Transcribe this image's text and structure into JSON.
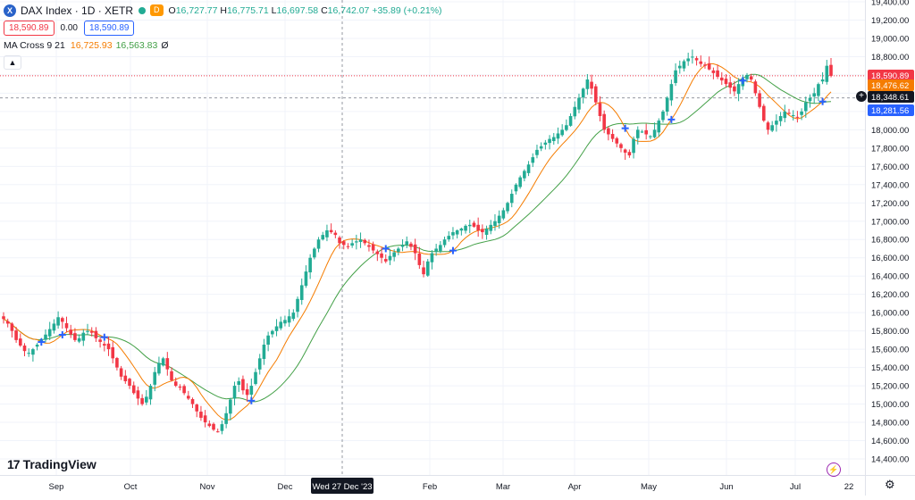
{
  "header": {
    "symbol_icon": "X",
    "symbol_name": "DAX Index · 1D · XETR",
    "status_badge": "D",
    "ohlc": {
      "o_label": "O",
      "o_value": "16,727.77",
      "h_label": "H",
      "h_value": "16,775.71",
      "l_label": "L",
      "l_value": "16,697.58",
      "c_label": "C",
      "c_value": "16,742.07",
      "change": "+35.89 (+0.21%)"
    },
    "sell_price": "18,590.89",
    "spread": "0.00",
    "buy_price": "18,590.89"
  },
  "indicator": {
    "label": "MA Cross 9 21",
    "fast_value": "16,725.93",
    "slow_value": "16,563.83",
    "cross_value": "Ø",
    "collapse_icon": "chevron-up-icon"
  },
  "footer": {
    "logo_mark": "17",
    "logo_text": "TradingView",
    "crosshair_date": "Wed 27 Dec '23"
  },
  "colors": {
    "up": "#22ab94",
    "down": "#f23645",
    "fast_ma": "#f57c00",
    "slow_ma": "#43a047",
    "cross_marker": "#2962ff",
    "current_price": "#f23645"
  },
  "chart_data": {
    "type": "candlestick",
    "y_axis_ticks": [
      14400,
      14600,
      14800,
      15000,
      15200,
      15400,
      15600,
      15800,
      16000,
      16200,
      16400,
      16600,
      16800,
      17000,
      17200,
      17400,
      17600,
      17800,
      18000,
      18200,
      18400,
      18600,
      18800,
      19000,
      19200,
      19400
    ],
    "x_axis_labels": [
      "Sep",
      "Oct",
      "Nov",
      "Dec",
      "Feb",
      "Mar",
      "Apr",
      "May",
      "Jun",
      "Jul",
      "22"
    ],
    "price_labels": [
      {
        "value": "18,590.89",
        "kind": "last"
      },
      {
        "value": "18,476.62",
        "kind": "fast_ma"
      },
      {
        "value": "18,348.61",
        "kind": "crosshair"
      },
      {
        "value": "18,281.56",
        "kind": "slow_ma"
      }
    ],
    "closes": [
      15930,
      15880,
      15800,
      15700,
      15640,
      15580,
      15560,
      15600,
      15650,
      15700,
      15760,
      15820,
      15880,
      15950,
      15900,
      15830,
      15760,
      15700,
      15720,
      15780,
      15800,
      15780,
      15720,
      15680,
      15640,
      15600,
      15500,
      15400,
      15300,
      15250,
      15200,
      15120,
      15060,
      15000,
      15080,
      15200,
      15350,
      15450,
      15500,
      15380,
      15260,
      15200,
      15180,
      15120,
      15060,
      15000,
      14920,
      14850,
      14800,
      14760,
      14720,
      14700,
      14780,
      14900,
      15050,
      15200,
      15250,
      15150,
      15100,
      15200,
      15350,
      15500,
      15650,
      15750,
      15800,
      15850,
      15900,
      15920,
      15960,
      16000,
      16150,
      16300,
      16450,
      16600,
      16700,
      16800,
      16850,
      16900,
      16880,
      16850,
      16760,
      16740,
      16720,
      16760,
      16780,
      16800,
      16760,
      16720,
      16680,
      16640,
      16600,
      16560,
      16620,
      16660,
      16700,
      16740,
      16780,
      16720,
      16650,
      16520,
      16420,
      16560,
      16650,
      16700,
      16740,
      16800,
      16840,
      16880,
      16900,
      16920,
      16950,
      16960,
      16940,
      16900,
      16880,
      16920,
      16960,
      17000,
      17060,
      17120,
      17200,
      17300,
      17400,
      17480,
      17550,
      17620,
      17700,
      17780,
      17820,
      17860,
      17900,
      17920,
      17960,
      18000,
      18050,
      18150,
      18250,
      18350,
      18450,
      18550,
      18450,
      18300,
      18150,
      18000,
      17950,
      17900,
      17850,
      17800,
      17750,
      17720,
      17900,
      18000,
      17980,
      17950,
      17930,
      18000,
      18100,
      18200,
      18350,
      18500,
      18650,
      18700,
      18750,
      18780,
      18800,
      18760,
      18720,
      18700,
      18660,
      18620,
      18580,
      18540,
      18500,
      18460,
      18420,
      18500,
      18560,
      18600,
      18550,
      18400,
      18250,
      18100,
      18000,
      18050,
      18100,
      18150,
      18200,
      18180,
      18160,
      18140,
      18200,
      18300,
      18350,
      18400,
      18500,
      18550,
      18700,
      18590
    ]
  }
}
